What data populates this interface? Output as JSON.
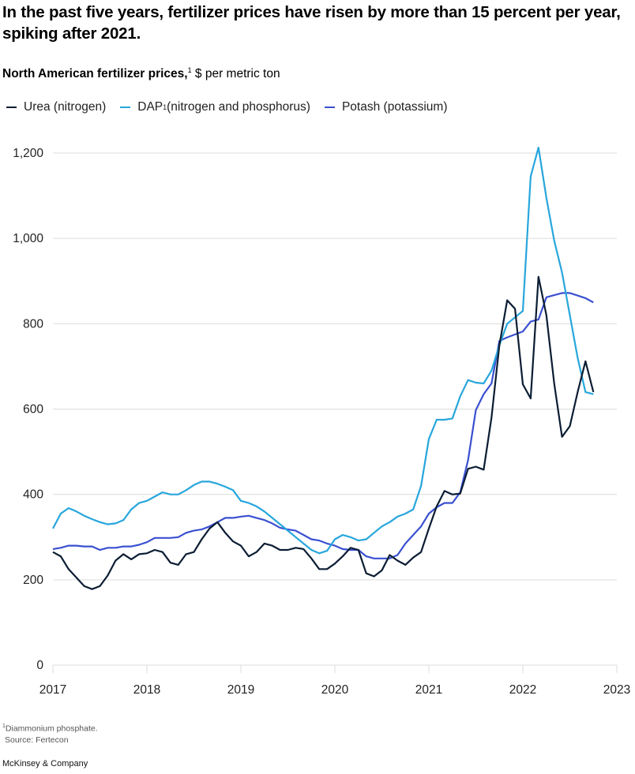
{
  "headline": "In the past five years, fertilizer prices have risen by more than 15 percent per year, spiking after 2021.",
  "subtitle": {
    "bold": "North American fertilizer prices,",
    "sup": "1",
    "rest": " $ per metric ton"
  },
  "footnote": {
    "line1_sup": "1",
    "line1": "Diammonium phosphate.",
    "line2": "Source: Fertecon"
  },
  "brand": "McKinsey & Company",
  "chart_data": {
    "type": "line",
    "title": "North American fertilizer prices, $ per metric ton",
    "xlabel": "",
    "ylabel": "$ per metric ton",
    "xlim": [
      2017,
      2023
    ],
    "ylim": [
      0,
      1200
    ],
    "yticks": [
      0,
      200,
      400,
      600,
      800,
      1000,
      1200
    ],
    "ytick_labels": [
      "0",
      "200",
      "400",
      "600",
      "800",
      "1,000",
      "1,200"
    ],
    "xticks": [
      2017,
      2018,
      2019,
      2020,
      2021,
      2022,
      2023
    ],
    "xtick_labels": [
      "2017",
      "2018",
      "2019",
      "2020",
      "2021",
      "2022",
      "2023"
    ],
    "grid": true,
    "legend_position": "top-left",
    "x_start": "2017-01",
    "x_step": "month",
    "series": [
      {
        "name": "Urea (nitrogen)",
        "label_main": "Urea (nitrogen)",
        "label_sup": "",
        "color": "#0b1d33",
        "values": [
          265,
          255,
          225,
          205,
          185,
          178,
          185,
          210,
          245,
          260,
          248,
          260,
          262,
          270,
          265,
          240,
          235,
          260,
          265,
          295,
          320,
          335,
          310,
          290,
          280,
          255,
          265,
          285,
          280,
          270,
          270,
          275,
          272,
          250,
          225,
          225,
          238,
          255,
          275,
          270,
          215,
          208,
          222,
          258,
          245,
          235,
          252,
          265,
          320,
          372,
          408,
          400,
          402,
          460,
          465,
          458,
          580,
          750,
          855,
          835,
          658,
          625,
          910,
          820,
          660,
          535,
          560,
          640,
          712,
          640
        ]
      },
      {
        "name": "DAP (nitrogen and phosphorus)",
        "label_main": "DAP",
        "label_sup": "1",
        "label_rest": " (nitrogen and phosphorus)",
        "color": "#27a6dc",
        "values": [
          320,
          355,
          368,
          360,
          350,
          342,
          335,
          330,
          332,
          340,
          365,
          380,
          385,
          395,
          405,
          400,
          400,
          410,
          422,
          430,
          430,
          425,
          418,
          410,
          385,
          380,
          372,
          360,
          345,
          330,
          315,
          300,
          285,
          270,
          262,
          268,
          295,
          305,
          300,
          292,
          295,
          310,
          325,
          335,
          348,
          355,
          365,
          420,
          530,
          575,
          575,
          578,
          630,
          668,
          662,
          660,
          690,
          750,
          800,
          815,
          830,
          1145,
          1213,
          1095,
          995,
          920,
          820,
          720,
          640,
          635
        ]
      },
      {
        "name": "Potash (potassium)",
        "label_main": "Potash (potassium)",
        "label_sup": "",
        "color": "#3a50d0",
        "values": [
          272,
          275,
          280,
          280,
          278,
          278,
          270,
          275,
          275,
          278,
          278,
          282,
          288,
          298,
          298,
          298,
          300,
          310,
          315,
          318,
          325,
          335,
          345,
          345,
          348,
          350,
          345,
          340,
          332,
          322,
          318,
          315,
          305,
          295,
          292,
          285,
          280,
          272,
          270,
          270,
          255,
          250,
          250,
          250,
          258,
          285,
          305,
          325,
          355,
          370,
          380,
          380,
          405,
          480,
          598,
          635,
          660,
          760,
          768,
          775,
          782,
          805,
          810,
          862,
          867,
          872,
          872,
          866,
          860,
          850
        ]
      }
    ]
  }
}
